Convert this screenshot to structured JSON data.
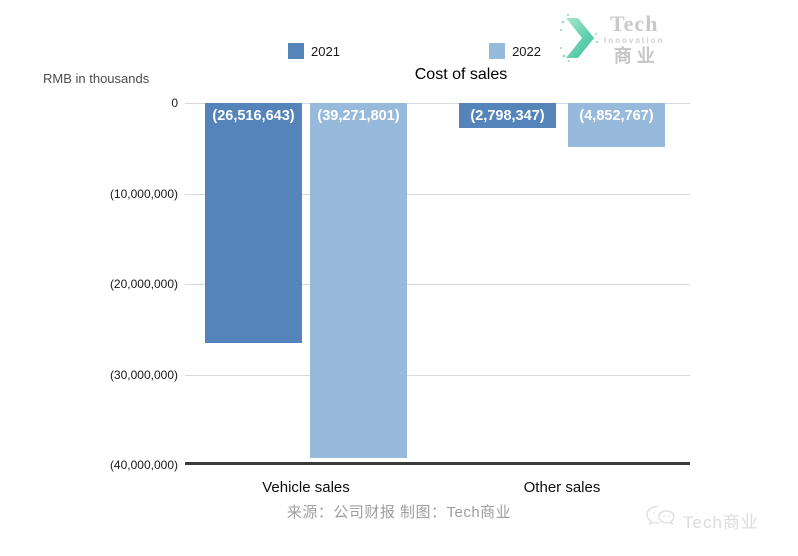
{
  "header": {
    "unit_label": "RMB in thousands",
    "title": "Cost of sales"
  },
  "chart_data": {
    "type": "bar",
    "title": "Cost of sales",
    "ylabel": "RMB in thousands",
    "categories": [
      "Vehicle sales",
      "Other sales"
    ],
    "series": [
      {
        "name": "2021",
        "color": "#5584BA",
        "values": [
          -26516643,
          -2798347
        ],
        "data_labels": [
          "(26,516,643)",
          "(2,798,347)"
        ]
      },
      {
        "name": "2022",
        "color": "#97BADC",
        "values": [
          -39271801,
          -4852767
        ],
        "data_labels": [
          "(39,271,801)",
          "(4,852,767)"
        ]
      }
    ],
    "ylim": [
      -40000000,
      0
    ],
    "yticks": [
      {
        "label": "0",
        "value": 0
      },
      {
        "label": "(10,000,000)",
        "value": -10000000
      },
      {
        "label": "(20,000,000)",
        "value": -20000000
      },
      {
        "label": "(30,000,000)",
        "value": -30000000
      },
      {
        "label": "(40,000,000)",
        "value": -40000000
      }
    ],
    "grid": true,
    "legend_position": "top",
    "gridline_color": "#d9d9d9",
    "axis_color": "#3a3a3a"
  },
  "branding": {
    "logo": {
      "line1": "Tech",
      "line2": "Innovation",
      "line3": "商业",
      "chevron_start": "#a8e6c9",
      "chevron_end": "#2fbf9b"
    },
    "watermark": {
      "text": "Tech商业"
    }
  },
  "footer": {
    "source": "来源：公司财报 制图：Tech商业"
  }
}
